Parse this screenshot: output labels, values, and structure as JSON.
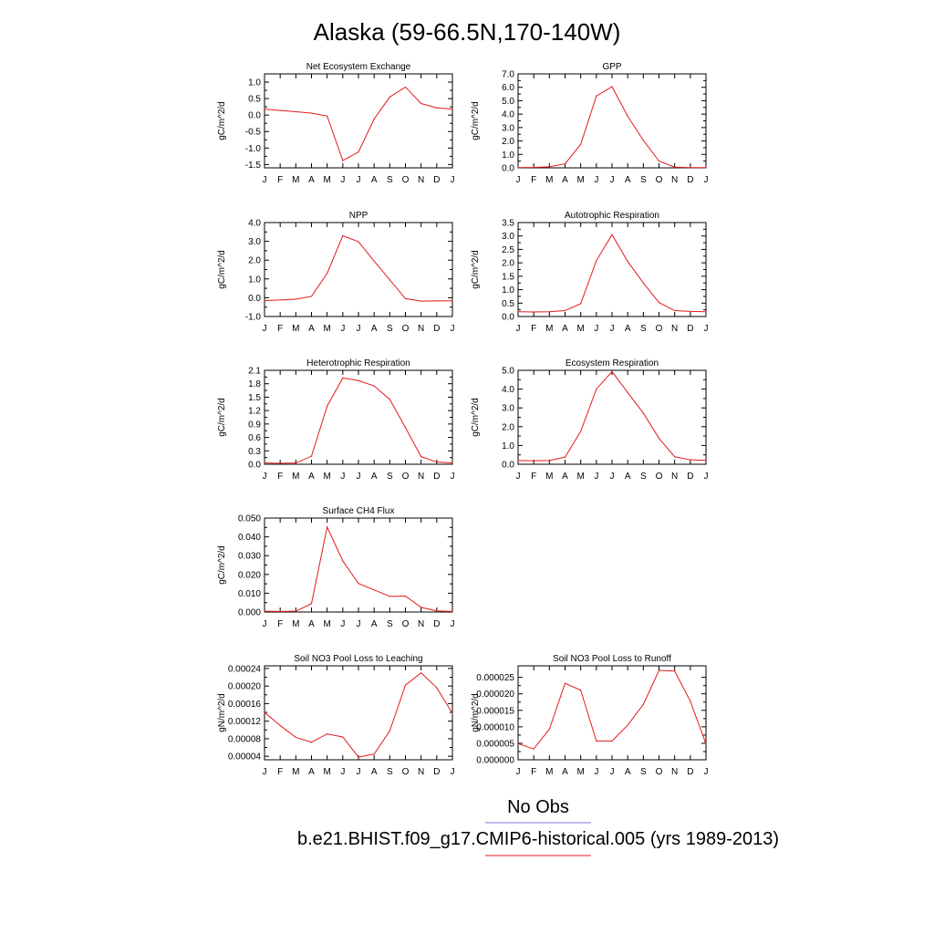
{
  "figure": {
    "title": "Alaska (59-66.5N,170-140W)",
    "month_labels": [
      "J",
      "F",
      "M",
      "A",
      "M",
      "J",
      "J",
      "A",
      "S",
      "O",
      "N",
      "D",
      "J"
    ],
    "series_color": "#e31a1c",
    "legend": [
      {
        "label": "No Obs",
        "color": "#7b7bdc"
      },
      {
        "label": "b.e21.BHIST.f09_g17.CMIP6-historical.005 (yrs 1989-2013)",
        "color": "#e31a1c"
      }
    ]
  },
  "chart_data": [
    {
      "type": "line",
      "title": "Net Ecosystem Exchange",
      "ylabel": "gC/m^2/d",
      "ylim": [
        -1.6,
        1.25
      ],
      "yticks": [
        -1.5,
        -1.0,
        -0.5,
        0.0,
        0.5,
        1.0
      ],
      "ytick_labels": [
        "-1.5",
        "-1.0",
        "-0.5",
        "0.0",
        "0.5",
        "1.0"
      ],
      "x": [
        "J",
        "F",
        "M",
        "A",
        "M",
        "J",
        "J",
        "A",
        "S",
        "O",
        "N",
        "D",
        "J"
      ],
      "values": [
        0.18,
        0.14,
        0.1,
        0.06,
        -0.03,
        -1.38,
        -1.12,
        -0.12,
        0.55,
        0.85,
        0.35,
        0.22,
        0.18
      ]
    },
    {
      "type": "line",
      "title": "GPP",
      "ylabel": "gC/m^2/d",
      "ylim": [
        0,
        7
      ],
      "yticks": [
        0,
        1,
        2,
        3,
        4,
        5,
        6,
        7
      ],
      "ytick_labels": [
        "0.0",
        "1.0",
        "2.0",
        "3.0",
        "4.0",
        "5.0",
        "6.0",
        "7.0"
      ],
      "x": [
        "J",
        "F",
        "M",
        "A",
        "M",
        "J",
        "J",
        "A",
        "S",
        "O",
        "N",
        "D",
        "J"
      ],
      "values": [
        0.02,
        0.03,
        0.08,
        0.3,
        1.75,
        5.35,
        6.05,
        3.85,
        2.05,
        0.5,
        0.05,
        0.02,
        0.02
      ]
    },
    {
      "type": "line",
      "title": "NPP",
      "ylabel": "gC/m^2/d",
      "ylim": [
        -1,
        4
      ],
      "yticks": [
        -1,
        0,
        1,
        2,
        3,
        4
      ],
      "ytick_labels": [
        "-1.0",
        "0.0",
        "1.0",
        "2.0",
        "3.0",
        "4.0"
      ],
      "x": [
        "J",
        "F",
        "M",
        "A",
        "M",
        "J",
        "J",
        "A",
        "S",
        "O",
        "N",
        "D",
        "J"
      ],
      "values": [
        -0.15,
        -0.12,
        -0.08,
        0.07,
        1.3,
        3.3,
        2.98,
        1.95,
        0.95,
        -0.05,
        -0.18,
        -0.17,
        -0.16
      ]
    },
    {
      "type": "line",
      "title": "Autotrophic Respiration",
      "ylabel": "gC/m^2/d",
      "ylim": [
        0,
        3.5
      ],
      "yticks": [
        0,
        0.5,
        1,
        1.5,
        2,
        2.5,
        3,
        3.5
      ],
      "ytick_labels": [
        "0.0",
        "0.5",
        "1.0",
        "1.5",
        "2.0",
        "2.5",
        "3.0",
        "3.5"
      ],
      "x": [
        "J",
        "F",
        "M",
        "A",
        "M",
        "J",
        "J",
        "A",
        "S",
        "O",
        "N",
        "D",
        "J"
      ],
      "values": [
        0.18,
        0.17,
        0.18,
        0.22,
        0.48,
        2.08,
        3.05,
        2.05,
        1.25,
        0.52,
        0.22,
        0.19,
        0.18
      ]
    },
    {
      "type": "line",
      "title": "Heterotrophic Respiration",
      "ylabel": "gC/m^2/d",
      "ylim": [
        0,
        2.1
      ],
      "yticks": [
        0,
        0.3,
        0.6,
        0.9,
        1.2,
        1.5,
        1.8,
        2.1
      ],
      "ytick_labels": [
        "0.0",
        "0.3",
        "0.6",
        "0.9",
        "1.2",
        "1.5",
        "1.8",
        "2.1"
      ],
      "x": [
        "J",
        "F",
        "M",
        "A",
        "M",
        "J",
        "J",
        "A",
        "S",
        "O",
        "N",
        "D",
        "J"
      ],
      "values": [
        0.03,
        0.02,
        0.03,
        0.18,
        1.3,
        1.93,
        1.87,
        1.75,
        1.45,
        0.82,
        0.17,
        0.05,
        0.03
      ]
    },
    {
      "type": "line",
      "title": "Ecosystem Respiration",
      "ylabel": "gC/m^2/d",
      "ylim": [
        0,
        5
      ],
      "yticks": [
        0,
        1,
        2,
        3,
        4,
        5
      ],
      "ytick_labels": [
        "0.0",
        "1.0",
        "2.0",
        "3.0",
        "4.0",
        "5.0"
      ],
      "x": [
        "J",
        "F",
        "M",
        "A",
        "M",
        "J",
        "J",
        "A",
        "S",
        "O",
        "N",
        "D",
        "J"
      ],
      "values": [
        0.2,
        0.19,
        0.2,
        0.38,
        1.75,
        4.0,
        4.93,
        3.82,
        2.72,
        1.38,
        0.4,
        0.24,
        0.2
      ]
    },
    {
      "type": "line",
      "title": "Surface CH4 Flux",
      "ylabel": "gC/m^2/d",
      "ylim": [
        0,
        0.05
      ],
      "yticks": [
        0,
        0.01,
        0.02,
        0.03,
        0.04,
        0.05
      ],
      "ytick_labels": [
        "0.000",
        "0.010",
        "0.020",
        "0.030",
        "0.040",
        "0.050"
      ],
      "x": [
        "J",
        "F",
        "M",
        "A",
        "M",
        "J",
        "J",
        "A",
        "S",
        "O",
        "N",
        "D",
        "J"
      ],
      "values": [
        0.0004,
        0.0003,
        0.0004,
        0.0045,
        0.0452,
        0.0272,
        0.0152,
        0.0118,
        0.0083,
        0.0085,
        0.0025,
        0.0006,
        0.0003
      ]
    },
    null,
    {
      "type": "line",
      "title": "Soil NO3 Pool Loss to Leaching",
      "ylabel": "gN/m^2/d",
      "ylim": [
        3.2e-05,
        0.000246
      ],
      "yticks": [
        4e-05,
        8e-05,
        0.00012,
        0.00016,
        0.0002,
        0.00024
      ],
      "ytick_labels": [
        "0.00004",
        "0.00008",
        "0.00012",
        "0.00016",
        "0.00020",
        "0.00024"
      ],
      "x": [
        "J",
        "F",
        "M",
        "A",
        "M",
        "J",
        "J",
        "A",
        "S",
        "O",
        "N",
        "D",
        "J"
      ],
      "values": [
        0.00014,
        0.00011,
        8.3e-05,
        7.2e-05,
        9.1e-05,
        8.4e-05,
        3.8e-05,
        4.5e-05,
        9.8e-05,
        0.000202,
        0.00023,
        0.000196,
        0.000138
      ]
    },
    {
      "type": "line",
      "title": "Soil NO3 Pool Loss to Runoff",
      "ylabel": "gN/m^2/d",
      "ylim": [
        0,
        2.85e-05
      ],
      "yticks": [
        0,
        5e-06,
        1e-05,
        1.5e-05,
        2e-05,
        2.5e-05
      ],
      "ytick_labels": [
        "0.000000",
        "0.000005",
        "0.000010",
        "0.000015",
        "0.000020",
        "0.000025"
      ],
      "x": [
        "J",
        "F",
        "M",
        "A",
        "M",
        "J",
        "J",
        "A",
        "S",
        "O",
        "N",
        "D",
        "J"
      ],
      "values": [
        4.9e-06,
        3.3e-06,
        9.3e-06,
        2.32e-05,
        2.11e-05,
        5.7e-06,
        5.7e-06,
        1.05e-05,
        1.68e-05,
        2.71e-05,
        2.69e-05,
        1.78e-05,
        4.8e-06
      ]
    }
  ]
}
